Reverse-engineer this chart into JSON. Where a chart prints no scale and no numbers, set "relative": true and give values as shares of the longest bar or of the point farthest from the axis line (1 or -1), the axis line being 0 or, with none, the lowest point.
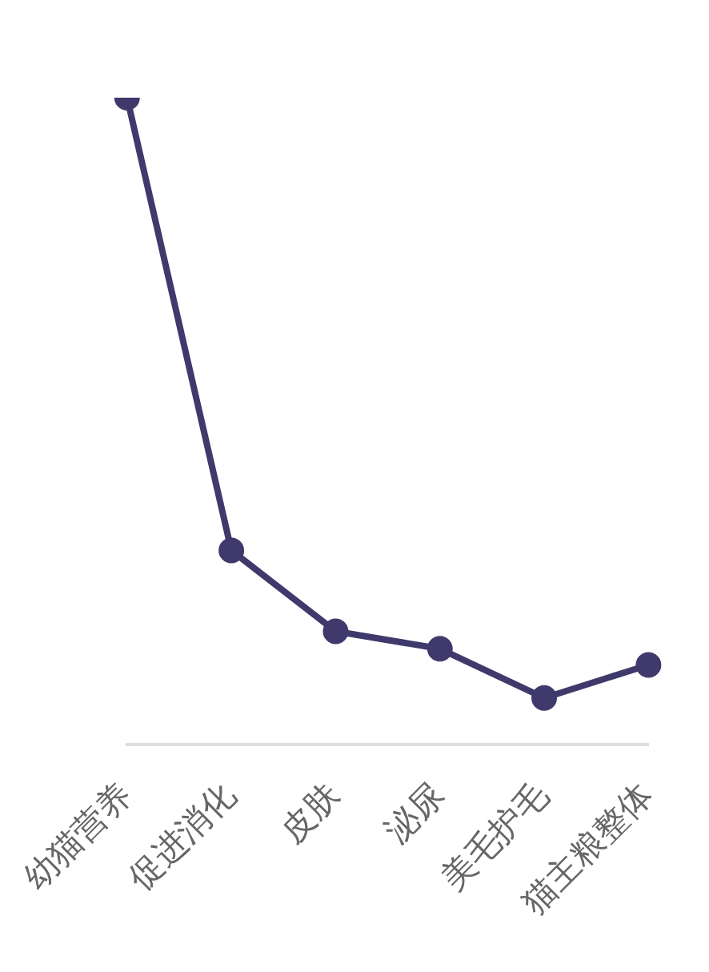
{
  "chart_data": {
    "type": "line",
    "relative": true,
    "categories": [
      "幼猫营养",
      "促进消化",
      "皮肤",
      "泌尿",
      "美毛护毛",
      "猫主粮整体"
    ],
    "series": [
      {
        "color": "#3f3a6b",
        "values": [
          1,
          0.3,
          0.175,
          0.148,
          0.072,
          0.123
        ]
      }
    ],
    "grid": false,
    "legend": false,
    "marker": "circle"
  }
}
